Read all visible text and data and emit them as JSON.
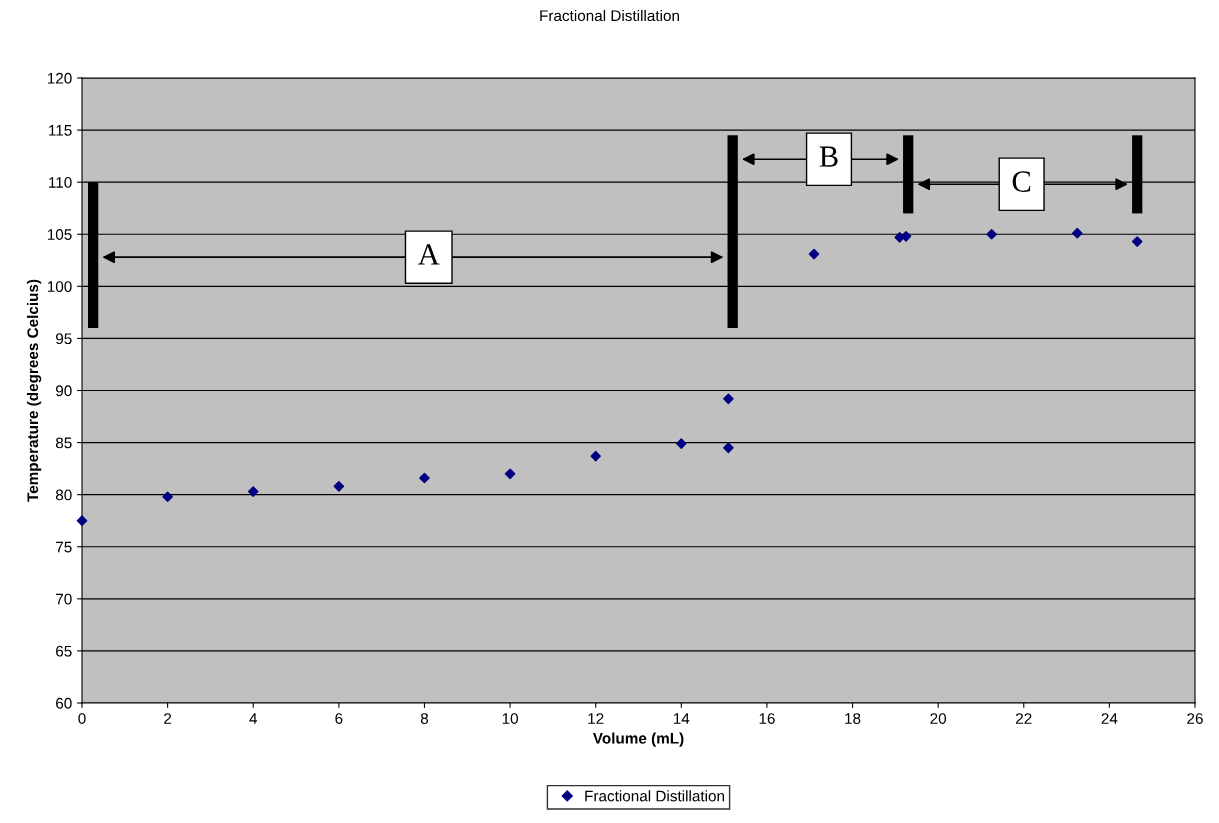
{
  "chart_data": {
    "type": "scatter",
    "title": "Fractional Distillation",
    "xlabel": "Volume (mL)",
    "ylabel": "Temperature (degrees Celcius)",
    "series": [
      {
        "name": "Fractional Distillation",
        "color": "#000080",
        "x": [
          0,
          2,
          4,
          6,
          8,
          10,
          12,
          14,
          15.1,
          15.1,
          17.1,
          19.1,
          19.25,
          21.25,
          23.25,
          24.65
        ],
        "values": [
          77.5,
          79.8,
          80.3,
          80.8,
          81.6,
          82.0,
          83.7,
          84.9,
          89.2,
          84.5,
          103.1,
          104.7,
          104.8,
          105.0,
          105.1,
          104.3
        ]
      }
    ],
    "xlim": [
      0,
      26
    ],
    "xticks": [
      0,
      2,
      4,
      6,
      8,
      10,
      12,
      14,
      16,
      18,
      20,
      22,
      24,
      26
    ],
    "ylim": [
      60,
      120
    ],
    "yticks": [
      60,
      65,
      70,
      75,
      80,
      85,
      90,
      95,
      100,
      105,
      110,
      115,
      120
    ],
    "grid": "y",
    "legend": "bottom",
    "marker": "diamond",
    "annotations": [
      "A",
      "B",
      "C"
    ]
  }
}
